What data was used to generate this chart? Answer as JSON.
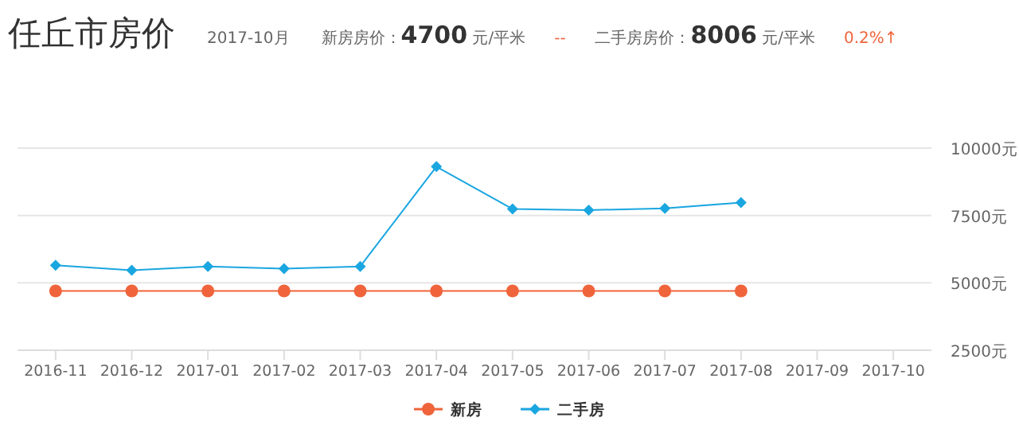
{
  "chart_data": {
    "type": "line",
    "title": "任丘市房价",
    "subtitle": "2017-10月",
    "annotations": [
      "新房房价：**4700** 元/平米",
      "--",
      "二手房房价：**8006** 元/平米",
      "0.2%↑"
    ],
    "categories": [
      "2016-11",
      "2016-12",
      "2017-01",
      "2017-02",
      "2017-03",
      "2017-04",
      "2017-05",
      "2017-06",
      "2017-07",
      "2017-08",
      "2017-09",
      "2017-10"
    ],
    "series": [
      {
        "name": "新房",
        "color": "#f0643c",
        "marker": "circle",
        "values": [
          4700,
          4700,
          4700,
          4700,
          4700,
          4700,
          4700,
          4700,
          4700,
          4700,
          null,
          null
        ]
      },
      {
        "name": "二手房",
        "color": "#1aa6e0",
        "marker": "diamond",
        "values": [
          5650,
          5470,
          5610,
          5530,
          5610,
          9310,
          7740,
          7700,
          7760,
          7980,
          null,
          null
        ]
      }
    ],
    "ylim": [
      2500,
      10000
    ],
    "yticks": [
      {
        "value": 2500,
        "label": "2500元"
      },
      {
        "value": 5000,
        "label": "5000元"
      },
      {
        "value": 7500,
        "label": "7500元"
      },
      {
        "value": 10000,
        "label": "10000元"
      }
    ],
    "grid": "y",
    "legend": "bottom"
  }
}
